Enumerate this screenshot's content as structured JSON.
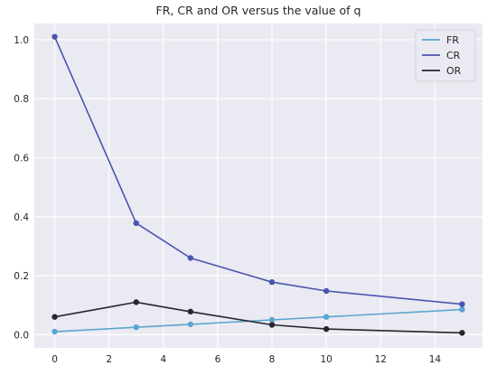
{
  "chart_data": {
    "type": "line",
    "title": "FR, CR and OR versus the value of q",
    "xlabel": "",
    "ylabel": "",
    "x": [
      0,
      3,
      5,
      8,
      10,
      15
    ],
    "series": [
      {
        "name": "FR",
        "color": "#5aa5cf",
        "values": [
          0.01,
          0.025,
          0.035,
          0.05,
          0.06,
          0.085
        ]
      },
      {
        "name": "CR",
        "color": "#4a55b0",
        "values": [
          1.01,
          0.378,
          0.26,
          0.178,
          0.148,
          0.103
        ]
      },
      {
        "name": "OR",
        "color": "#26262e",
        "values": [
          0.06,
          0.11,
          0.078,
          0.033,
          0.019,
          0.006
        ]
      }
    ],
    "xlim": [
      -0.75,
      15.75
    ],
    "ylim": [
      -0.045,
      1.055
    ],
    "xticks": [
      0,
      2,
      4,
      6,
      8,
      10,
      12,
      14
    ],
    "yticks": [
      0.0,
      0.2,
      0.4,
      0.6,
      0.8,
      1.0
    ],
    "ytick_labels": [
      "0.0",
      "0.2",
      "0.4",
      "0.6",
      "0.8",
      "1.0"
    ],
    "grid": true,
    "legend_position": "top-right",
    "background_color": "#eaeaf2"
  }
}
